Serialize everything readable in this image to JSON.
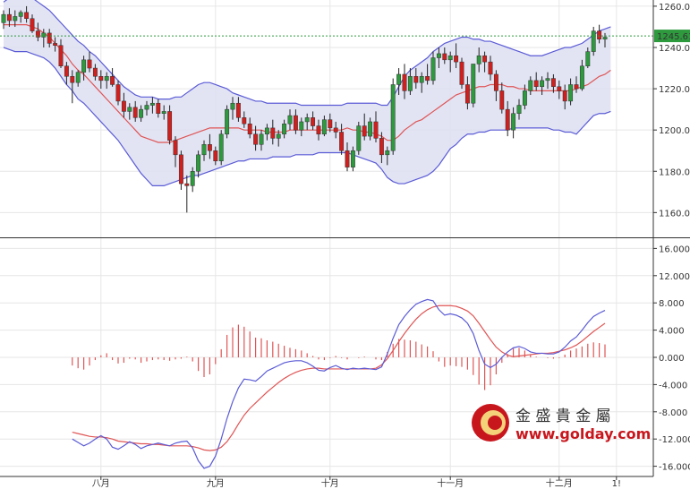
{
  "chart_data": [
    {
      "type": "candlestick",
      "panel": "price",
      "y_ticks": [
        "1260.0",
        "1240.0",
        "1220.0",
        "1200.0",
        "1180.0",
        "1160.0"
      ],
      "y_tick_values": [
        1260,
        1240,
        1220,
        1200,
        1180,
        1160
      ],
      "ylim": [
        1148,
        1263
      ],
      "last_price_label": "1245.61",
      "last_price": 1245.61,
      "colors": {
        "up": "#2e9a3e",
        "down": "#d0201e",
        "upper_band": "#5b5bd6",
        "lower_band": "#5b5bd6",
        "middle_band": "#e05555",
        "band_fill": "#dddff2",
        "price_line": "#2e9a3e"
      },
      "candles_ohlc": [
        [
          1252,
          1258,
          1249,
          1256
        ],
        [
          1256,
          1259,
          1250,
          1253
        ],
        [
          1253,
          1258,
          1250,
          1255
        ],
        [
          1255,
          1258,
          1252,
          1257
        ],
        [
          1257,
          1260,
          1252,
          1254
        ],
        [
          1254,
          1256,
          1247,
          1248
        ],
        [
          1248,
          1252,
          1243,
          1245
        ],
        [
          1245,
          1249,
          1240,
          1247
        ],
        [
          1247,
          1249,
          1240,
          1242
        ],
        [
          1242,
          1245,
          1238,
          1241
        ],
        [
          1241,
          1244,
          1230,
          1231
        ],
        [
          1231,
          1233,
          1222,
          1226
        ],
        [
          1226,
          1229,
          1213,
          1223
        ],
        [
          1223,
          1229,
          1221,
          1228
        ],
        [
          1228,
          1236,
          1224,
          1234
        ],
        [
          1234,
          1238,
          1228,
          1230
        ],
        [
          1230,
          1232,
          1224,
          1226
        ],
        [
          1226,
          1229,
          1220,
          1224
        ],
        [
          1224,
          1228,
          1220,
          1226
        ],
        [
          1226,
          1230,
          1221,
          1222
        ],
        [
          1222,
          1224,
          1212,
          1214
        ],
        [
          1214,
          1218,
          1206,
          1209
        ],
        [
          1209,
          1213,
          1205,
          1211
        ],
        [
          1211,
          1214,
          1204,
          1206
        ],
        [
          1206,
          1212,
          1204,
          1210
        ],
        [
          1210,
          1214,
          1207,
          1212
        ],
        [
          1212,
          1216,
          1208,
          1213
        ],
        [
          1213,
          1215,
          1206,
          1208
        ],
        [
          1208,
          1212,
          1205,
          1209
        ],
        [
          1209,
          1212,
          1193,
          1195
        ],
        [
          1195,
          1197,
          1182,
          1188
        ],
        [
          1188,
          1190,
          1171,
          1174
        ],
        [
          1174,
          1178,
          1160,
          1173
        ],
        [
          1173,
          1182,
          1170,
          1180
        ],
        [
          1180,
          1190,
          1177,
          1188
        ],
        [
          1188,
          1195,
          1185,
          1193
        ],
        [
          1193,
          1198,
          1186,
          1190
        ],
        [
          1190,
          1192,
          1183,
          1185
        ],
        [
          1185,
          1200,
          1183,
          1198
        ],
        [
          1198,
          1212,
          1196,
          1210
        ],
        [
          1210,
          1216,
          1205,
          1213
        ],
        [
          1213,
          1216,
          1204,
          1206
        ],
        [
          1206,
          1209,
          1201,
          1203
        ],
        [
          1203,
          1206,
          1196,
          1198
        ],
        [
          1198,
          1202,
          1190,
          1193
        ],
        [
          1193,
          1200,
          1190,
          1198
        ],
        [
          1198,
          1203,
          1195,
          1201
        ],
        [
          1201,
          1205,
          1193,
          1196
        ],
        [
          1196,
          1200,
          1192,
          1198
        ],
        [
          1198,
          1205,
          1196,
          1203
        ],
        [
          1203,
          1210,
          1200,
          1207
        ],
        [
          1207,
          1210,
          1198,
          1200
        ],
        [
          1200,
          1206,
          1197,
          1204
        ],
        [
          1204,
          1208,
          1200,
          1206
        ],
        [
          1206,
          1209,
          1200,
          1202
        ],
        [
          1202,
          1205,
          1195,
          1198
        ],
        [
          1198,
          1207,
          1197,
          1205
        ],
        [
          1205,
          1208,
          1199,
          1201
        ],
        [
          1201,
          1204,
          1196,
          1199
        ],
        [
          1199,
          1203,
          1188,
          1190
        ],
        [
          1190,
          1194,
          1180,
          1182
        ],
        [
          1182,
          1192,
          1180,
          1190
        ],
        [
          1190,
          1204,
          1188,
          1202
        ],
        [
          1202,
          1208,
          1195,
          1197
        ],
        [
          1197,
          1206,
          1195,
          1204
        ],
        [
          1204,
          1209,
          1194,
          1196
        ],
        [
          1196,
          1199,
          1184,
          1188
        ],
        [
          1188,
          1192,
          1183,
          1190
        ],
        [
          1190,
          1225,
          1188,
          1222
        ],
        [
          1222,
          1230,
          1217,
          1227
        ],
        [
          1227,
          1232,
          1215,
          1219
        ],
        [
          1219,
          1230,
          1217,
          1226
        ],
        [
          1226,
          1230,
          1220,
          1223
        ],
        [
          1223,
          1228,
          1218,
          1226
        ],
        [
          1226,
          1232,
          1222,
          1224
        ],
        [
          1224,
          1238,
          1222,
          1235
        ],
        [
          1235,
          1240,
          1230,
          1237
        ],
        [
          1237,
          1240,
          1232,
          1234
        ],
        [
          1234,
          1238,
          1228,
          1236
        ],
        [
          1236,
          1242,
          1230,
          1233
        ],
        [
          1233,
          1235,
          1220,
          1222
        ],
        [
          1222,
          1226,
          1210,
          1213
        ],
        [
          1213,
          1225,
          1211,
          1232
        ],
        [
          1232,
          1240,
          1228,
          1236
        ],
        [
          1236,
          1238,
          1228,
          1233
        ],
        [
          1233,
          1236,
          1224,
          1227
        ],
        [
          1227,
          1229,
          1214,
          1219
        ],
        [
          1219,
          1223,
          1208,
          1210
        ],
        [
          1210,
          1214,
          1197,
          1200
        ],
        [
          1200,
          1211,
          1196,
          1208
        ],
        [
          1208,
          1215,
          1205,
          1212
        ],
        [
          1212,
          1222,
          1210,
          1219
        ],
        [
          1219,
          1226,
          1217,
          1224
        ],
        [
          1224,
          1228,
          1219,
          1221
        ],
        [
          1221,
          1226,
          1217,
          1224
        ],
        [
          1224,
          1228,
          1220,
          1225
        ],
        [
          1225,
          1227,
          1218,
          1221
        ],
        [
          1221,
          1224,
          1215,
          1219
        ],
        [
          1219,
          1222,
          1210,
          1214
        ],
        [
          1214,
          1225,
          1212,
          1222
        ],
        [
          1222,
          1226,
          1218,
          1220
        ],
        [
          1220,
          1234,
          1219,
          1231
        ],
        [
          1231,
          1240,
          1230,
          1238
        ],
        [
          1238,
          1250,
          1236,
          1248
        ],
        [
          1248,
          1251,
          1242,
          1244
        ],
        [
          1244,
          1247,
          1240,
          1245
        ]
      ],
      "upper_band": [
        1262,
        1264,
        1265,
        1266,
        1266,
        1264,
        1262,
        1260,
        1258,
        1255,
        1252,
        1249,
        1246,
        1243,
        1241,
        1238,
        1236,
        1233,
        1230,
        1227,
        1224,
        1221,
        1219,
        1217,
        1216,
        1216,
        1216,
        1215,
        1215,
        1215,
        1216,
        1216,
        1218,
        1220,
        1222,
        1223,
        1223,
        1222,
        1221,
        1220,
        1218,
        1217,
        1216,
        1215,
        1214,
        1214,
        1213,
        1213,
        1213,
        1213,
        1213,
        1213,
        1212,
        1212,
        1212,
        1212,
        1212,
        1212,
        1212,
        1212,
        1213,
        1213,
        1213,
        1213,
        1213,
        1213,
        1212,
        1212,
        1216,
        1221,
        1226,
        1229,
        1231,
        1233,
        1235,
        1238,
        1240,
        1242,
        1243,
        1244,
        1245,
        1245,
        1244,
        1244,
        1243,
        1243,
        1242,
        1241,
        1240,
        1239,
        1238,
        1237,
        1236,
        1236,
        1236,
        1237,
        1238,
        1239,
        1240,
        1240,
        1241,
        1242,
        1244,
        1246,
        1248,
        1249,
        1250
      ],
      "lower_band": [
        1240,
        1239,
        1238,
        1238,
        1238,
        1237,
        1236,
        1235,
        1233,
        1230,
        1226,
        1222,
        1219,
        1215,
        1213,
        1210,
        1207,
        1204,
        1201,
        1198,
        1195,
        1191,
        1187,
        1183,
        1179,
        1176,
        1173,
        1173,
        1173,
        1174,
        1175,
        1176,
        1177,
        1178,
        1178,
        1179,
        1180,
        1181,
        1182,
        1183,
        1184,
        1185,
        1185,
        1186,
        1186,
        1186,
        1186,
        1187,
        1187,
        1187,
        1187,
        1188,
        1188,
        1188,
        1188,
        1189,
        1189,
        1189,
        1189,
        1189,
        1189,
        1188,
        1187,
        1186,
        1185,
        1184,
        1181,
        1177,
        1175,
        1174,
        1174,
        1175,
        1176,
        1177,
        1178,
        1180,
        1183,
        1187,
        1191,
        1193,
        1196,
        1198,
        1198,
        1199,
        1199,
        1200,
        1200,
        1200,
        1200,
        1201,
        1201,
        1201,
        1201,
        1201,
        1201,
        1201,
        1200,
        1200,
        1199,
        1199,
        1198,
        1201,
        1204,
        1207,
        1208,
        1208,
        1209
      ],
      "middle_band": [
        1251,
        1251,
        1251,
        1251,
        1251,
        1250,
        1249,
        1247,
        1245,
        1242,
        1239,
        1236,
        1232,
        1229,
        1227,
        1224,
        1221,
        1218,
        1215,
        1212,
        1209,
        1206,
        1203,
        1200,
        1197,
        1196,
        1195,
        1194,
        1194,
        1194,
        1195,
        1196,
        1197,
        1198,
        1199,
        1200,
        1201,
        1201,
        1201,
        1201,
        1201,
        1201,
        1200,
        1200,
        1200,
        1200,
        1199,
        1199,
        1199,
        1199,
        1200,
        1200,
        1200,
        1200,
        1200,
        1200,
        1200,
        1200,
        1200,
        1200,
        1201,
        1200,
        1200,
        1199,
        1199,
        1198,
        1197,
        1195,
        1195,
        1197,
        1200,
        1202,
        1204,
        1205,
        1207,
        1209,
        1211,
        1213,
        1215,
        1217,
        1218,
        1219,
        1220,
        1221,
        1221,
        1222,
        1222,
        1222,
        1221,
        1221,
        1220,
        1220,
        1219,
        1219,
        1219,
        1219,
        1219,
        1219,
        1219,
        1219,
        1220,
        1221,
        1222,
        1224,
        1226,
        1227,
        1229
      ]
    },
    {
      "type": "macd",
      "panel": "indicator",
      "y_ticks": [
        "16.000",
        "12.000",
        "8.000",
        "4.000",
        "0.000",
        "-4.000",
        "-8.000",
        "-12.000",
        "-16.000"
      ],
      "y_tick_values": [
        16,
        12,
        8,
        4,
        0,
        -4,
        -8,
        -12,
        -16
      ],
      "ylim": [
        -17.5,
        17.5
      ],
      "colors": {
        "dif": "#5b5bd6",
        "dea": "#e05555",
        "histogram": "#e05555"
      },
      "dif": [
        -12.0,
        -12.5,
        -13.0,
        -12.6,
        -12.0,
        -11.5,
        -12.0,
        -13.2,
        -13.5,
        -13.0,
        -12.4,
        -12.8,
        -13.4,
        -13.0,
        -12.8,
        -12.6,
        -12.8,
        -13.0,
        -12.6,
        -12.4,
        -12.3,
        -13.3,
        -15.2,
        -16.3,
        -16.0,
        -14.5,
        -12.0,
        -9.0,
        -6.5,
        -4.5,
        -3.2,
        -3.3,
        -3.5,
        -2.8,
        -2.0,
        -1.6,
        -1.2,
        -0.8,
        -0.6,
        -0.5,
        -0.5,
        -0.8,
        -1.3,
        -1.9,
        -2.0,
        -1.5,
        -1.2,
        -1.6,
        -1.8,
        -1.6,
        -1.7,
        -1.6,
        -1.7,
        -1.8,
        -1.4,
        0.5,
        2.8,
        4.8,
        6.0,
        7.0,
        7.8,
        8.2,
        8.5,
        8.3,
        7.0,
        6.2,
        6.4,
        6.2,
        5.8,
        5.0,
        3.5,
        1.0,
        -1.0,
        -1.5,
        -1.0,
        0.0,
        0.8,
        1.4,
        1.6,
        1.3,
        0.8,
        0.6,
        0.6,
        0.5,
        0.5,
        0.8,
        1.5,
        2.4,
        3.0,
        4.0,
        5.1,
        6.0,
        6.5,
        6.9
      ],
      "dea": [
        -11.0,
        -11.2,
        -11.4,
        -11.6,
        -11.7,
        -11.7,
        -11.8,
        -12.0,
        -12.3,
        -12.4,
        -12.5,
        -12.6,
        -12.7,
        -12.7,
        -12.8,
        -12.8,
        -12.9,
        -13.0,
        -13.0,
        -13.0,
        -13.0,
        -13.1,
        -13.3,
        -13.6,
        -13.7,
        -13.6,
        -13.2,
        -12.4,
        -11.2,
        -9.8,
        -8.5,
        -7.5,
        -6.7,
        -5.9,
        -5.1,
        -4.4,
        -3.7,
        -3.1,
        -2.6,
        -2.2,
        -1.9,
        -1.7,
        -1.6,
        -1.6,
        -1.7,
        -1.7,
        -1.7,
        -1.7,
        -1.7,
        -1.7,
        -1.7,
        -1.7,
        -1.7,
        -1.6,
        -1.1,
        -0.2,
        1.0,
        2.3,
        3.5,
        4.6,
        5.6,
        6.4,
        7.0,
        7.4,
        7.6,
        7.6,
        7.6,
        7.5,
        7.2,
        6.8,
        6.1,
        5.0,
        3.8,
        2.6,
        1.5,
        0.8,
        0.3,
        0.1,
        0.2,
        0.3,
        0.4,
        0.5,
        0.6,
        0.6,
        0.7,
        0.9,
        1.1,
        1.4,
        1.8,
        2.4,
        3.1,
        3.8,
        4.4,
        5.0
      ],
      "histogram": [
        -1.2,
        -1.6,
        -1.8,
        -1.2,
        -0.4,
        0.3,
        0.6,
        -0.4,
        -0.9,
        -0.8,
        -0.2,
        -0.3,
        -0.8,
        -0.6,
        -0.4,
        -0.3,
        -0.4,
        -0.5,
        -0.3,
        -0.2,
        0.1,
        -0.6,
        -2.0,
        -2.9,
        -2.5,
        -1.0,
        1.2,
        3.3,
        4.4,
        4.8,
        4.5,
        3.8,
        2.9,
        2.8,
        2.5,
        2.3,
        2.0,
        1.7,
        1.4,
        1.2,
        1.0,
        0.6,
        0.2,
        -0.3,
        -0.4,
        -0.1,
        0.2,
        -0.1,
        -0.3,
        0.0,
        -0.1,
        0.1,
        0.0,
        -0.3,
        -0.4,
        0.8,
        2.0,
        2.7,
        2.6,
        2.5,
        2.3,
        1.9,
        1.6,
        0.9,
        -0.6,
        -1.4,
        -1.2,
        -1.3,
        -1.4,
        -1.8,
        -2.6,
        -4.0,
        -4.8,
        -4.1,
        -2.5,
        -0.8,
        0.5,
        1.3,
        1.4,
        1.0,
        0.4,
        0.1,
        0.0,
        -0.1,
        -0.2,
        -0.1,
        0.4,
        1.0,
        1.3,
        1.6,
        2.0,
        2.2,
        2.1,
        1.9
      ]
    }
  ],
  "x_axis": {
    "labels": [
      "八月",
      "九月",
      "十月",
      "十一月",
      "十二月",
      "1!"
    ],
    "label_positions_index": [
      17,
      37,
      57,
      78,
      97,
      107
    ]
  },
  "logo": {
    "name": "金 盛 貴 金 屬",
    "url": "www.golday.com",
    "colors": {
      "brand": "#c8161d",
      "gold": "#d8a93a"
    }
  }
}
